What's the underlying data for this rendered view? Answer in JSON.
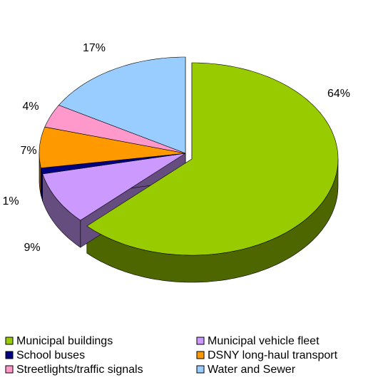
{
  "chart_data": {
    "type": "pie",
    "categories": [
      "Municipal buildings",
      "Municipal vehicle fleet",
      "School buses",
      "DSNY long-haul transport",
      "Streetlights/traffic signals",
      "Water and Sewer"
    ],
    "values": [
      64,
      9,
      1,
      7,
      4,
      17
    ],
    "value_labels": [
      "64%",
      "9%",
      "1%",
      "7%",
      "4%",
      "17%"
    ],
    "colors": [
      "#99cc00",
      "#cc99ff",
      "#000080",
      "#ff9900",
      "#ff99cc",
      "#99ccff"
    ],
    "legend": "bottom"
  }
}
